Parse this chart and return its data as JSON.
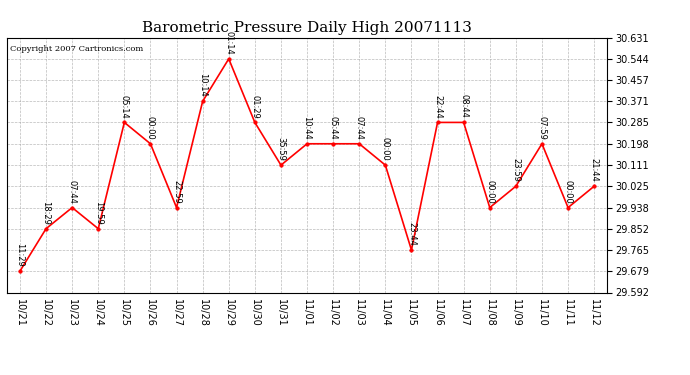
{
  "title": "Barometric Pressure Daily High 20071113",
  "copyright": "Copyright 2007 Cartronics.com",
  "x_labels": [
    "10/21",
    "10/22",
    "10/23",
    "10/24",
    "10/25",
    "10/26",
    "10/27",
    "10/28",
    "10/29",
    "10/30",
    "10/31",
    "11/01",
    "11/02",
    "11/03",
    "11/04",
    "11/05",
    "11/06",
    "11/07",
    "11/08",
    "11/09",
    "11/10",
    "11/11",
    "11/12"
  ],
  "y_values": [
    29.679,
    29.852,
    29.938,
    29.852,
    30.285,
    30.198,
    29.938,
    30.371,
    30.544,
    30.285,
    30.111,
    30.198,
    30.198,
    30.198,
    30.111,
    29.765,
    30.285,
    30.285,
    29.938,
    30.025,
    30.198,
    29.938,
    30.025
  ],
  "point_labels": [
    "11:29",
    "18:29",
    "07:44",
    "19:59",
    "05:14",
    "00:00",
    "22:59",
    "10:14",
    "01:14",
    "01:29",
    "35:59",
    "10:44",
    "05:44",
    "07:44",
    "00:00",
    "23:44",
    "22:44",
    "08:44",
    "00:00",
    "23:59",
    "07:59",
    "00:00",
    "21:44"
  ],
  "ylim_min": 29.592,
  "ylim_max": 30.631,
  "yticks": [
    29.592,
    29.679,
    29.765,
    29.852,
    29.938,
    30.025,
    30.111,
    30.198,
    30.285,
    30.371,
    30.457,
    30.544,
    30.631
  ],
  "line_color": "red",
  "marker_color": "red",
  "bg_color": "white",
  "grid_color": "#aaaaaa",
  "label_color": "black",
  "title_fontsize": 11,
  "tick_fontsize": 7,
  "annotation_fontsize": 6,
  "fig_width": 6.9,
  "fig_height": 3.75,
  "dpi": 100
}
